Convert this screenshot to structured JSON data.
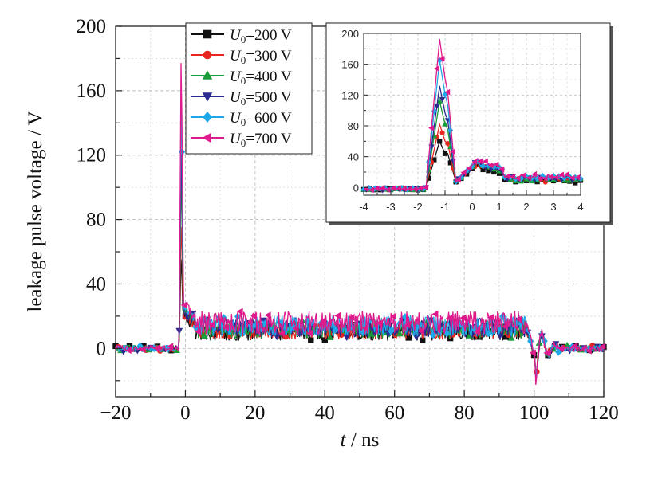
{
  "chart_data": [
    {
      "type": "line",
      "xlabel": "t / ns",
      "ylabel": "leakage pulse voltage / V",
      "xlim": [
        -20,
        120
      ],
      "ylim": [
        -30,
        200
      ],
      "xticks": [
        "−20",
        "0",
        "20",
        "40",
        "60",
        "80",
        "100",
        "120"
      ],
      "yticks": [
        "0",
        "40",
        "80",
        "120",
        "160",
        "200"
      ],
      "grid": true,
      "legend_position": "top-center",
      "series": [
        {
          "name": "U0=200 V",
          "legend_main": "U",
          "legend_sub": "0",
          "legend_rest": "=200 V",
          "color": "#111111",
          "marker": "square",
          "peak": 60,
          "plateau": 10
        },
        {
          "name": "U0=300 V",
          "legend_main": "U",
          "legend_sub": "0",
          "legend_rest": "=300 V",
          "color": "#e8261f",
          "marker": "circle",
          "peak": 82,
          "plateau": 11
        },
        {
          "name": "U0=400 V",
          "legend_main": "U",
          "legend_sub": "0",
          "legend_rest": "=400 V",
          "color": "#1a9c3a",
          "marker": "triangle-up",
          "peak": 112,
          "plateau": 12
        },
        {
          "name": "U0=500 V",
          "legend_main": "U",
          "legend_sub": "0",
          "legend_rest": "=500 V",
          "color": "#2b2a8f",
          "marker": "triangle-down",
          "peak": 132,
          "plateau": 13
        },
        {
          "name": "U0=600 V",
          "legend_main": "U",
          "legend_sub": "0",
          "legend_rest": "=600 V",
          "color": "#1fa8e8",
          "marker": "diamond",
          "peak": 165,
          "plateau": 14
        },
        {
          "name": "U0=700 V",
          "legend_main": "U",
          "legend_sub": "0",
          "legend_rest": "=700 V",
          "color": "#e0198c",
          "marker": "triangle-left",
          "peak": 193,
          "plateau": 16
        }
      ]
    },
    {
      "type": "line",
      "role": "inset",
      "xlim": [
        -4,
        4
      ],
      "ylim": [
        -10,
        200
      ],
      "xticks": [
        "-4",
        "-3",
        "-2",
        "-1",
        "0",
        "1",
        "2",
        "3",
        "4"
      ],
      "yticks": [
        "0",
        "40",
        "80",
        "120",
        "160",
        "200"
      ],
      "grid": true
    }
  ]
}
